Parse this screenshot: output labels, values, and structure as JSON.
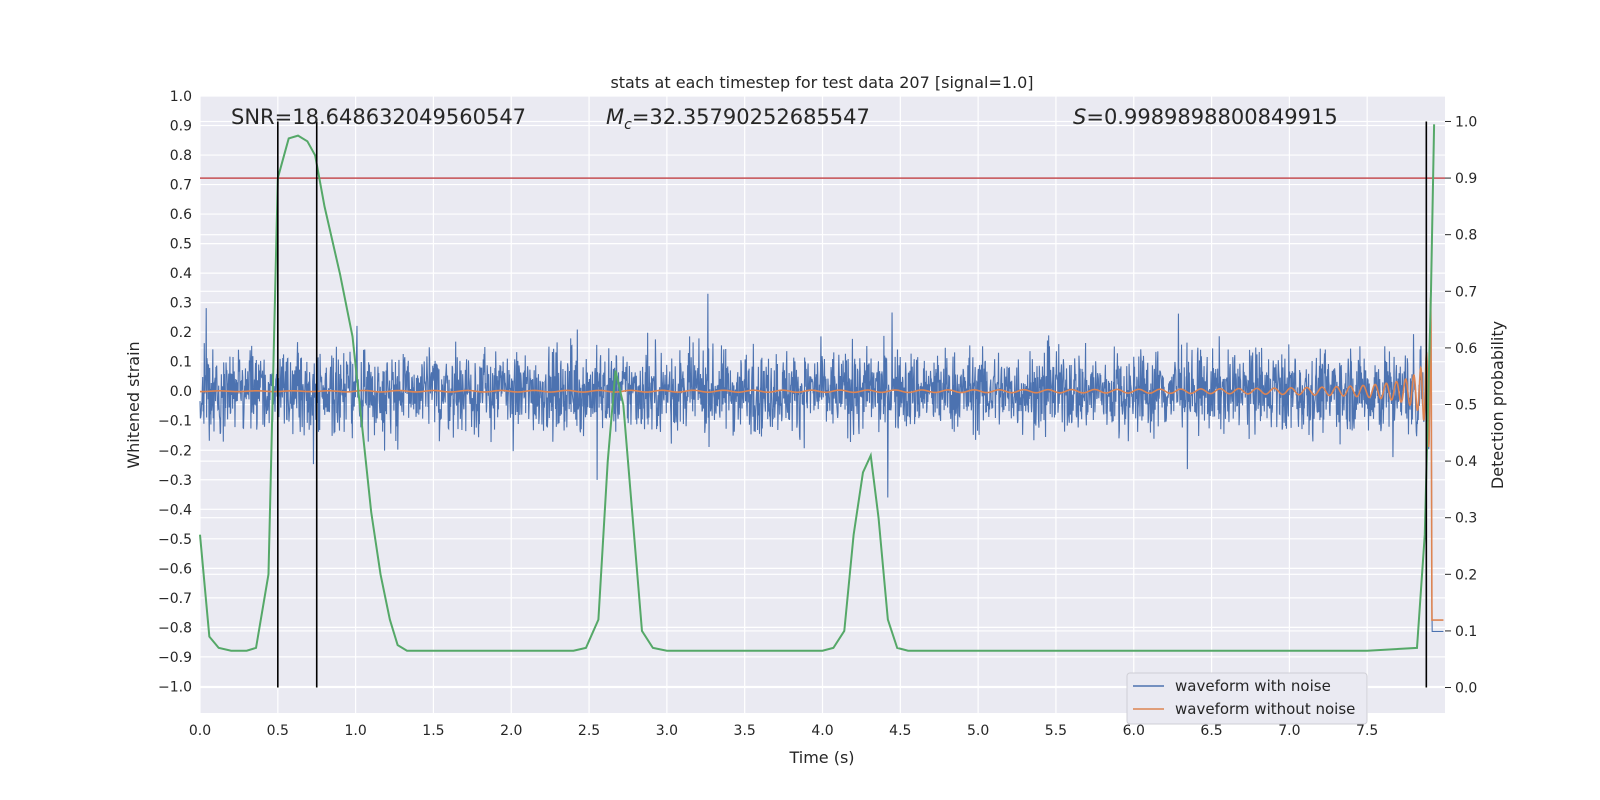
{
  "chart_data": {
    "type": "line",
    "title": "stats at each timestep for test data 207 [signal=1.0]",
    "xlabel": "Time (s)",
    "ylabel": "Whitened strain",
    "y2label": "Detection probability",
    "xlim": [
      0.0,
      8.0
    ],
    "ylim": [
      -1.09,
      1.0
    ],
    "y2lim": [
      -0.045,
      1.045
    ],
    "x_ticks": [
      "0.0",
      "0.5",
      "1.0",
      "1.5",
      "2.0",
      "2.5",
      "3.0",
      "3.5",
      "4.0",
      "4.5",
      "5.0",
      "5.5",
      "6.0",
      "6.5",
      "7.0",
      "7.5"
    ],
    "y_ticks": [
      "1.0",
      "0.9",
      "0.8",
      "0.7",
      "0.6",
      "0.5",
      "0.4",
      "0.3",
      "0.2",
      "0.1",
      "0.0",
      "−0.1",
      "−0.2",
      "−0.3",
      "−0.4",
      "−0.5",
      "−0.6",
      "−0.7",
      "−0.8",
      "−0.9",
      "−1.0"
    ],
    "y2_ticks": [
      "1.0",
      "0.9",
      "0.8",
      "0.7",
      "0.6",
      "0.5",
      "0.4",
      "0.3",
      "0.2",
      "0.1",
      "0.0"
    ],
    "grid": true,
    "legend_position": "lower-right",
    "stats": {
      "snr_label": "SNR=18.648632049560547",
      "mc_symbol": "M",
      "mc_sub": "c",
      "mc_value": "=32.35790252685547",
      "s_symbol": "S",
      "s_value": "=0.9989898800849915"
    },
    "series": [
      {
        "name": "waveform with noise",
        "color": "#4c72b0",
        "description_values": "noise band approx ±0.15 whitened strain with peaks to ±0.33, merger burst near t=7.9 s reaching about ±0.9"
      },
      {
        "name": "waveform without noise",
        "color": "#dd8452",
        "chirp": {
          "t_merger": 7.92,
          "amplitude_at_4s": 0.006,
          "amplitude_at_7s": 0.04,
          "peak_amplitude": 0.9
        }
      },
      {
        "axis": "y2",
        "color": "#55a868",
        "points": [
          [
            0.0,
            0.27
          ],
          [
            0.06,
            0.09
          ],
          [
            0.12,
            0.07
          ],
          [
            0.2,
            0.065
          ],
          [
            0.3,
            0.065
          ],
          [
            0.36,
            0.07
          ],
          [
            0.44,
            0.2
          ],
          [
            0.5,
            0.9
          ],
          [
            0.57,
            0.97
          ],
          [
            0.63,
            0.975
          ],
          [
            0.69,
            0.965
          ],
          [
            0.74,
            0.94
          ],
          [
            0.8,
            0.85
          ],
          [
            0.9,
            0.73
          ],
          [
            0.98,
            0.62
          ],
          [
            1.05,
            0.44
          ],
          [
            1.1,
            0.31
          ],
          [
            1.16,
            0.2
          ],
          [
            1.22,
            0.12
          ],
          [
            1.27,
            0.075
          ],
          [
            1.33,
            0.065
          ],
          [
            1.5,
            0.065
          ],
          [
            2.0,
            0.065
          ],
          [
            2.4,
            0.065
          ],
          [
            2.48,
            0.07
          ],
          [
            2.56,
            0.12
          ],
          [
            2.62,
            0.4
          ],
          [
            2.67,
            0.56
          ],
          [
            2.72,
            0.5
          ],
          [
            2.78,
            0.3
          ],
          [
            2.84,
            0.1
          ],
          [
            2.91,
            0.07
          ],
          [
            3.0,
            0.065
          ],
          [
            3.5,
            0.065
          ],
          [
            4.0,
            0.065
          ],
          [
            4.07,
            0.07
          ],
          [
            4.14,
            0.1
          ],
          [
            4.2,
            0.27
          ],
          [
            4.26,
            0.38
          ],
          [
            4.31,
            0.41
          ],
          [
            4.36,
            0.3
          ],
          [
            4.42,
            0.12
          ],
          [
            4.48,
            0.07
          ],
          [
            4.55,
            0.065
          ],
          [
            5.0,
            0.065
          ],
          [
            6.0,
            0.065
          ],
          [
            7.0,
            0.065
          ],
          [
            7.5,
            0.065
          ],
          [
            7.82,
            0.07
          ],
          [
            7.87,
            0.27
          ],
          [
            7.91,
            0.7
          ],
          [
            7.93,
            0.995
          ]
        ]
      }
    ],
    "hlines": [
      {
        "axis": "y2",
        "value": 0.9,
        "color": "#c44e52"
      }
    ],
    "vlines": [
      {
        "x": 0.5,
        "y2_from": 0.0,
        "y2_to": 1.0,
        "color": "#000000"
      },
      {
        "x": 0.75,
        "y2_from": 0.0,
        "y2_to": 1.0,
        "color": "#000000"
      },
      {
        "x": 7.88,
        "y2_from": 0.0,
        "y2_to": 1.0,
        "color": "#000000"
      }
    ]
  }
}
